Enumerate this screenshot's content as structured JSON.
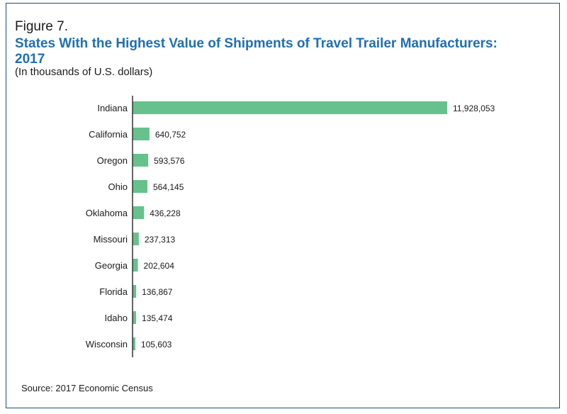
{
  "figure_label": "Figure 7.",
  "source": "Source: 2017 Economic Census",
  "chart_data": {
    "type": "bar",
    "orientation": "horizontal",
    "title": "States With the Highest Value of Shipments of Travel Trailer Manufacturers: 2017",
    "subtitle": "(In thousands of U.S. dollars)",
    "categories": [
      "Indiana",
      "California",
      "Oregon",
      "Ohio",
      "Oklahoma",
      "Missouri",
      "Georgia",
      "Florida",
      "Idaho",
      "Wisconsin"
    ],
    "values": [
      11928053,
      640752,
      593576,
      564145,
      436228,
      237313,
      202604,
      136867,
      135474,
      105603
    ],
    "value_labels": [
      "11,928,053",
      "640,752",
      "593,576",
      "564,145",
      "436,228",
      "237,313",
      "202,604",
      "136,867",
      "135,474",
      "105,603"
    ],
    "xlim": [
      0,
      11928053
    ],
    "grid": false,
    "bar_color": "#66c18c",
    "axis_color": "#333333"
  }
}
